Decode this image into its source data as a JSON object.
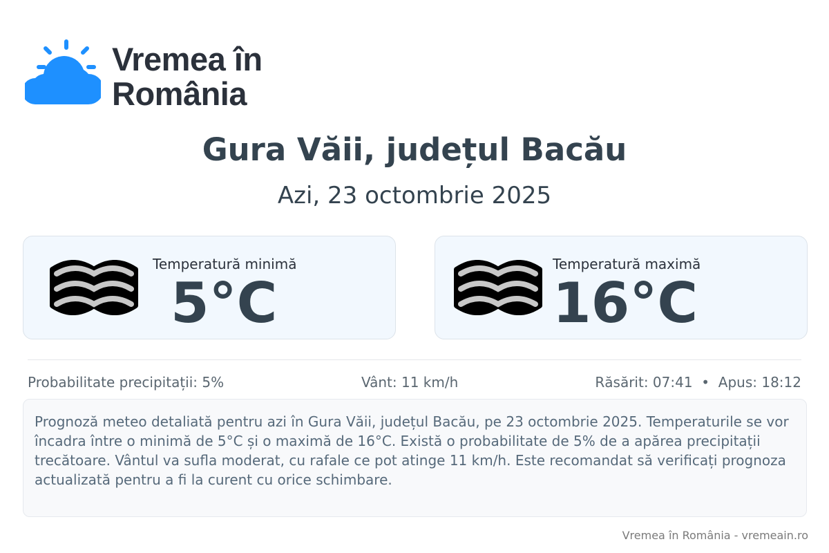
{
  "brand": {
    "name_line1": "Vremea în",
    "name_line2": "România",
    "accent": "#1e90ff"
  },
  "location": {
    "title": "Gura Văii, județul Bacău",
    "date": "Azi, 23 octombrie 2025"
  },
  "cards": [
    {
      "label": "Temperatură minimă",
      "value": "5°C",
      "icon": "fog-icon"
    },
    {
      "label": "Temperatură maximă",
      "value": "16°C",
      "icon": "fog-icon"
    }
  ],
  "details": {
    "precip": "Probabilitate precipitații: 5%",
    "wind": "Vânt: 11 km/h",
    "sun": "Răsărit: 07:41  •  Apus: 18:12"
  },
  "description": "Prognoză meteo detaliată pentru azi în Gura Văii, județul Bacău, pe 23 octombrie 2025. Temperaturile se vor încadra între o minimă de 5°C și o maximă de 16°C. Există o probabilitate de 5% de a apărea precipitații trecătoare. Vântul va sufla moderat, cu rafale ce pot atinge 11 km/h. Este recomandat să verificați prognoza actualizată pentru a fi la curent cu orice schimbare.",
  "footer": "Vremea în România - vremeain.ro"
}
